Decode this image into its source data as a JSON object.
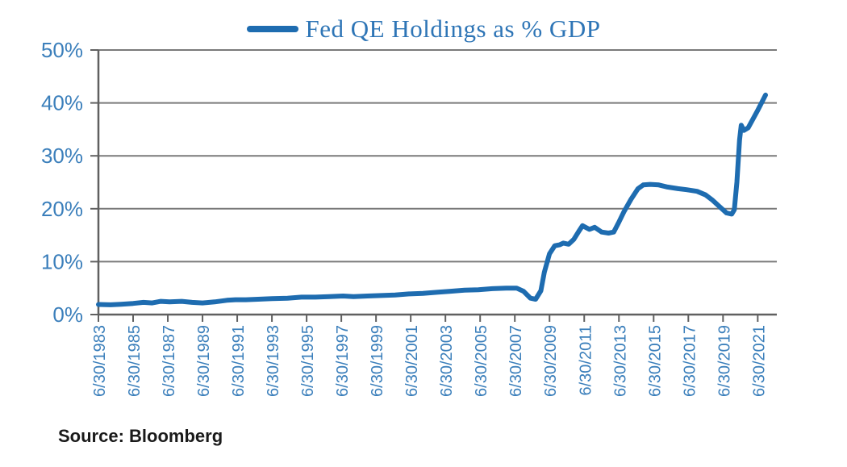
{
  "source": {
    "text": "Source: Bloomberg"
  },
  "colors": {
    "line": "#1e6cb0",
    "title_text": "#2e75b6",
    "axis_label": "#3b7fbb",
    "gridline": "#7a7a7a",
    "axis": "#606060"
  },
  "chart_data": {
    "type": "line",
    "title": "Fed QE Holdings as % GDP",
    "xlabel": "",
    "ylabel": "",
    "grid": "horizontal",
    "legend_position": "top-center",
    "ylim": [
      0,
      50
    ],
    "xlim": [
      1983.5,
      2022.6
    ],
    "y_ticks": [
      0,
      10,
      20,
      30,
      40,
      50
    ],
    "y_tick_labels": [
      "0%",
      "10%",
      "20%",
      "30%",
      "40%",
      "50%"
    ],
    "x_tick_years": [
      1983.5,
      1985.5,
      1987.5,
      1989.5,
      1991.5,
      1993.5,
      1995.5,
      1997.5,
      1999.5,
      2001.5,
      2003.5,
      2005.5,
      2007.5,
      2009.5,
      2011.5,
      2013.5,
      2015.5,
      2017.5,
      2019.5,
      2021.5
    ],
    "x_tick_labels": [
      "6/30/1983",
      "6/30/1985",
      "6/30/1987",
      "6/30/1989",
      "6/30/1991",
      "6/30/1993",
      "6/30/1995",
      "6/30/1997",
      "6/30/1999",
      "6/30/2001",
      "6/30/2003",
      "6/30/2005",
      "6/30/2007",
      "6/30/2009",
      "6/30/2011",
      "6/30/2013",
      "6/30/2015",
      "6/30/2017",
      "6/30/2019",
      "6/30/2021"
    ],
    "series": [
      {
        "name": "Fed QE Holdings as % GDP",
        "points": [
          [
            1983.5,
            1.9
          ],
          [
            1984.2,
            1.85
          ],
          [
            1984.8,
            1.95
          ],
          [
            1985.5,
            2.1
          ],
          [
            1986.1,
            2.3
          ],
          [
            1986.6,
            2.2
          ],
          [
            1987.1,
            2.5
          ],
          [
            1987.6,
            2.4
          ],
          [
            1988.3,
            2.5
          ],
          [
            1988.9,
            2.3
          ],
          [
            1989.5,
            2.2
          ],
          [
            1990.2,
            2.4
          ],
          [
            1990.9,
            2.7
          ],
          [
            1991.4,
            2.8
          ],
          [
            1992.0,
            2.8
          ],
          [
            1992.7,
            2.9
          ],
          [
            1993.5,
            3.0
          ],
          [
            1994.4,
            3.1
          ],
          [
            1995.2,
            3.3
          ],
          [
            1996.0,
            3.3
          ],
          [
            1996.8,
            3.4
          ],
          [
            1997.6,
            3.5
          ],
          [
            1998.2,
            3.4
          ],
          [
            1999.0,
            3.5
          ],
          [
            1999.8,
            3.6
          ],
          [
            2000.6,
            3.7
          ],
          [
            2001.4,
            3.9
          ],
          [
            2002.2,
            4.0
          ],
          [
            2003.0,
            4.2
          ],
          [
            2003.8,
            4.4
          ],
          [
            2004.6,
            4.6
          ],
          [
            2005.4,
            4.7
          ],
          [
            2006.2,
            4.9
          ],
          [
            2007.0,
            5.0
          ],
          [
            2007.6,
            5.0
          ],
          [
            2008.0,
            4.4
          ],
          [
            2008.4,
            3.1
          ],
          [
            2008.7,
            2.9
          ],
          [
            2009.0,
            4.5
          ],
          [
            2009.2,
            8.0
          ],
          [
            2009.5,
            11.5
          ],
          [
            2009.8,
            13.0
          ],
          [
            2010.1,
            13.2
          ],
          [
            2010.3,
            13.5
          ],
          [
            2010.6,
            13.3
          ],
          [
            2010.9,
            14.2
          ],
          [
            2011.2,
            15.8
          ],
          [
            2011.4,
            16.8
          ],
          [
            2011.8,
            16.1
          ],
          [
            2012.1,
            16.5
          ],
          [
            2012.5,
            15.6
          ],
          [
            2012.9,
            15.4
          ],
          [
            2013.2,
            15.6
          ],
          [
            2013.5,
            17.5
          ],
          [
            2013.8,
            19.5
          ],
          [
            2014.2,
            21.8
          ],
          [
            2014.6,
            23.8
          ],
          [
            2014.9,
            24.5
          ],
          [
            2015.3,
            24.6
          ],
          [
            2015.8,
            24.5
          ],
          [
            2016.3,
            24.1
          ],
          [
            2016.9,
            23.8
          ],
          [
            2017.4,
            23.6
          ],
          [
            2018.0,
            23.3
          ],
          [
            2018.5,
            22.6
          ],
          [
            2018.9,
            21.6
          ],
          [
            2019.3,
            20.4
          ],
          [
            2019.7,
            19.2
          ],
          [
            2020.0,
            19.0
          ],
          [
            2020.15,
            19.8
          ],
          [
            2020.3,
            25.0
          ],
          [
            2020.45,
            33.0
          ],
          [
            2020.55,
            35.8
          ],
          [
            2020.7,
            34.8
          ],
          [
            2020.95,
            35.3
          ],
          [
            2021.2,
            36.8
          ],
          [
            2021.5,
            38.6
          ],
          [
            2021.75,
            40.2
          ],
          [
            2021.95,
            41.5
          ]
        ]
      }
    ]
  }
}
